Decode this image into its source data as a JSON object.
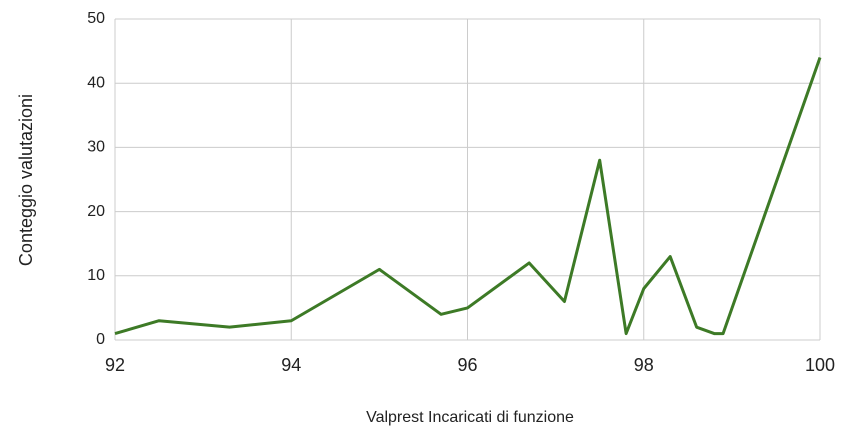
{
  "chart_data": {
    "type": "line",
    "xlabel": "Valprest Incaricati di funzione",
    "ylabel": "Conteggio valutazioni",
    "x": [
      92,
      92.5,
      93.3,
      94,
      95,
      95.7,
      96,
      96.7,
      97.1,
      97.5,
      97.8,
      98,
      98.3,
      98.6,
      98.8,
      98.9,
      100
    ],
    "series": [
      {
        "name": "Conteggio valutazioni",
        "color": "#3d7a26",
        "values": [
          1,
          3,
          2,
          3,
          11,
          4,
          5,
          12,
          6,
          28,
          1,
          8,
          13,
          2,
          1,
          1,
          44
        ]
      }
    ],
    "xlim": [
      92,
      100
    ],
    "xticks": [
      92,
      94,
      96,
      98,
      100
    ],
    "ylim": [
      0,
      50
    ],
    "yticks": [
      0,
      10,
      20,
      30,
      40,
      50
    ],
    "grid": true
  }
}
